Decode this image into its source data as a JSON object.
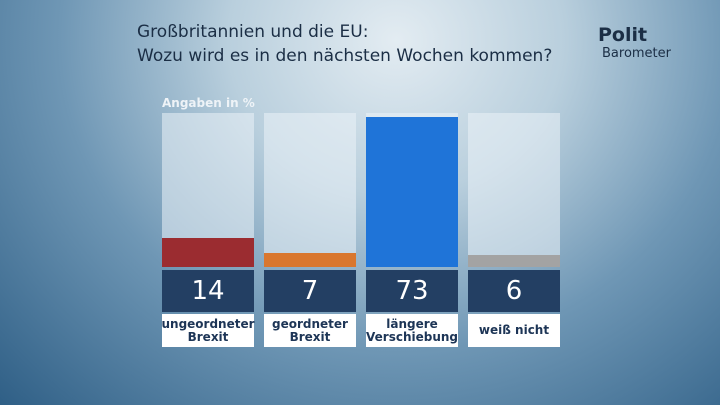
{
  "chart_data": {
    "type": "bar",
    "title_lines": [
      "Großbritannien und die EU:",
      "Wozu wird es in den nächsten Wochen kommen?"
    ],
    "subtitle": "Angaben in %",
    "logo": [
      "Polit",
      "Barometer"
    ],
    "categories": [
      "ungeordneter Brexit",
      "geordneter Brexit",
      "längere Verschiebung",
      "weiß nicht"
    ],
    "values": [
      14,
      7,
      73,
      6
    ],
    "colors": [
      "#9b2c30",
      "#d9772e",
      "#1f74d8",
      "#a3a3a3"
    ],
    "ylim": [
      0,
      75
    ]
  }
}
